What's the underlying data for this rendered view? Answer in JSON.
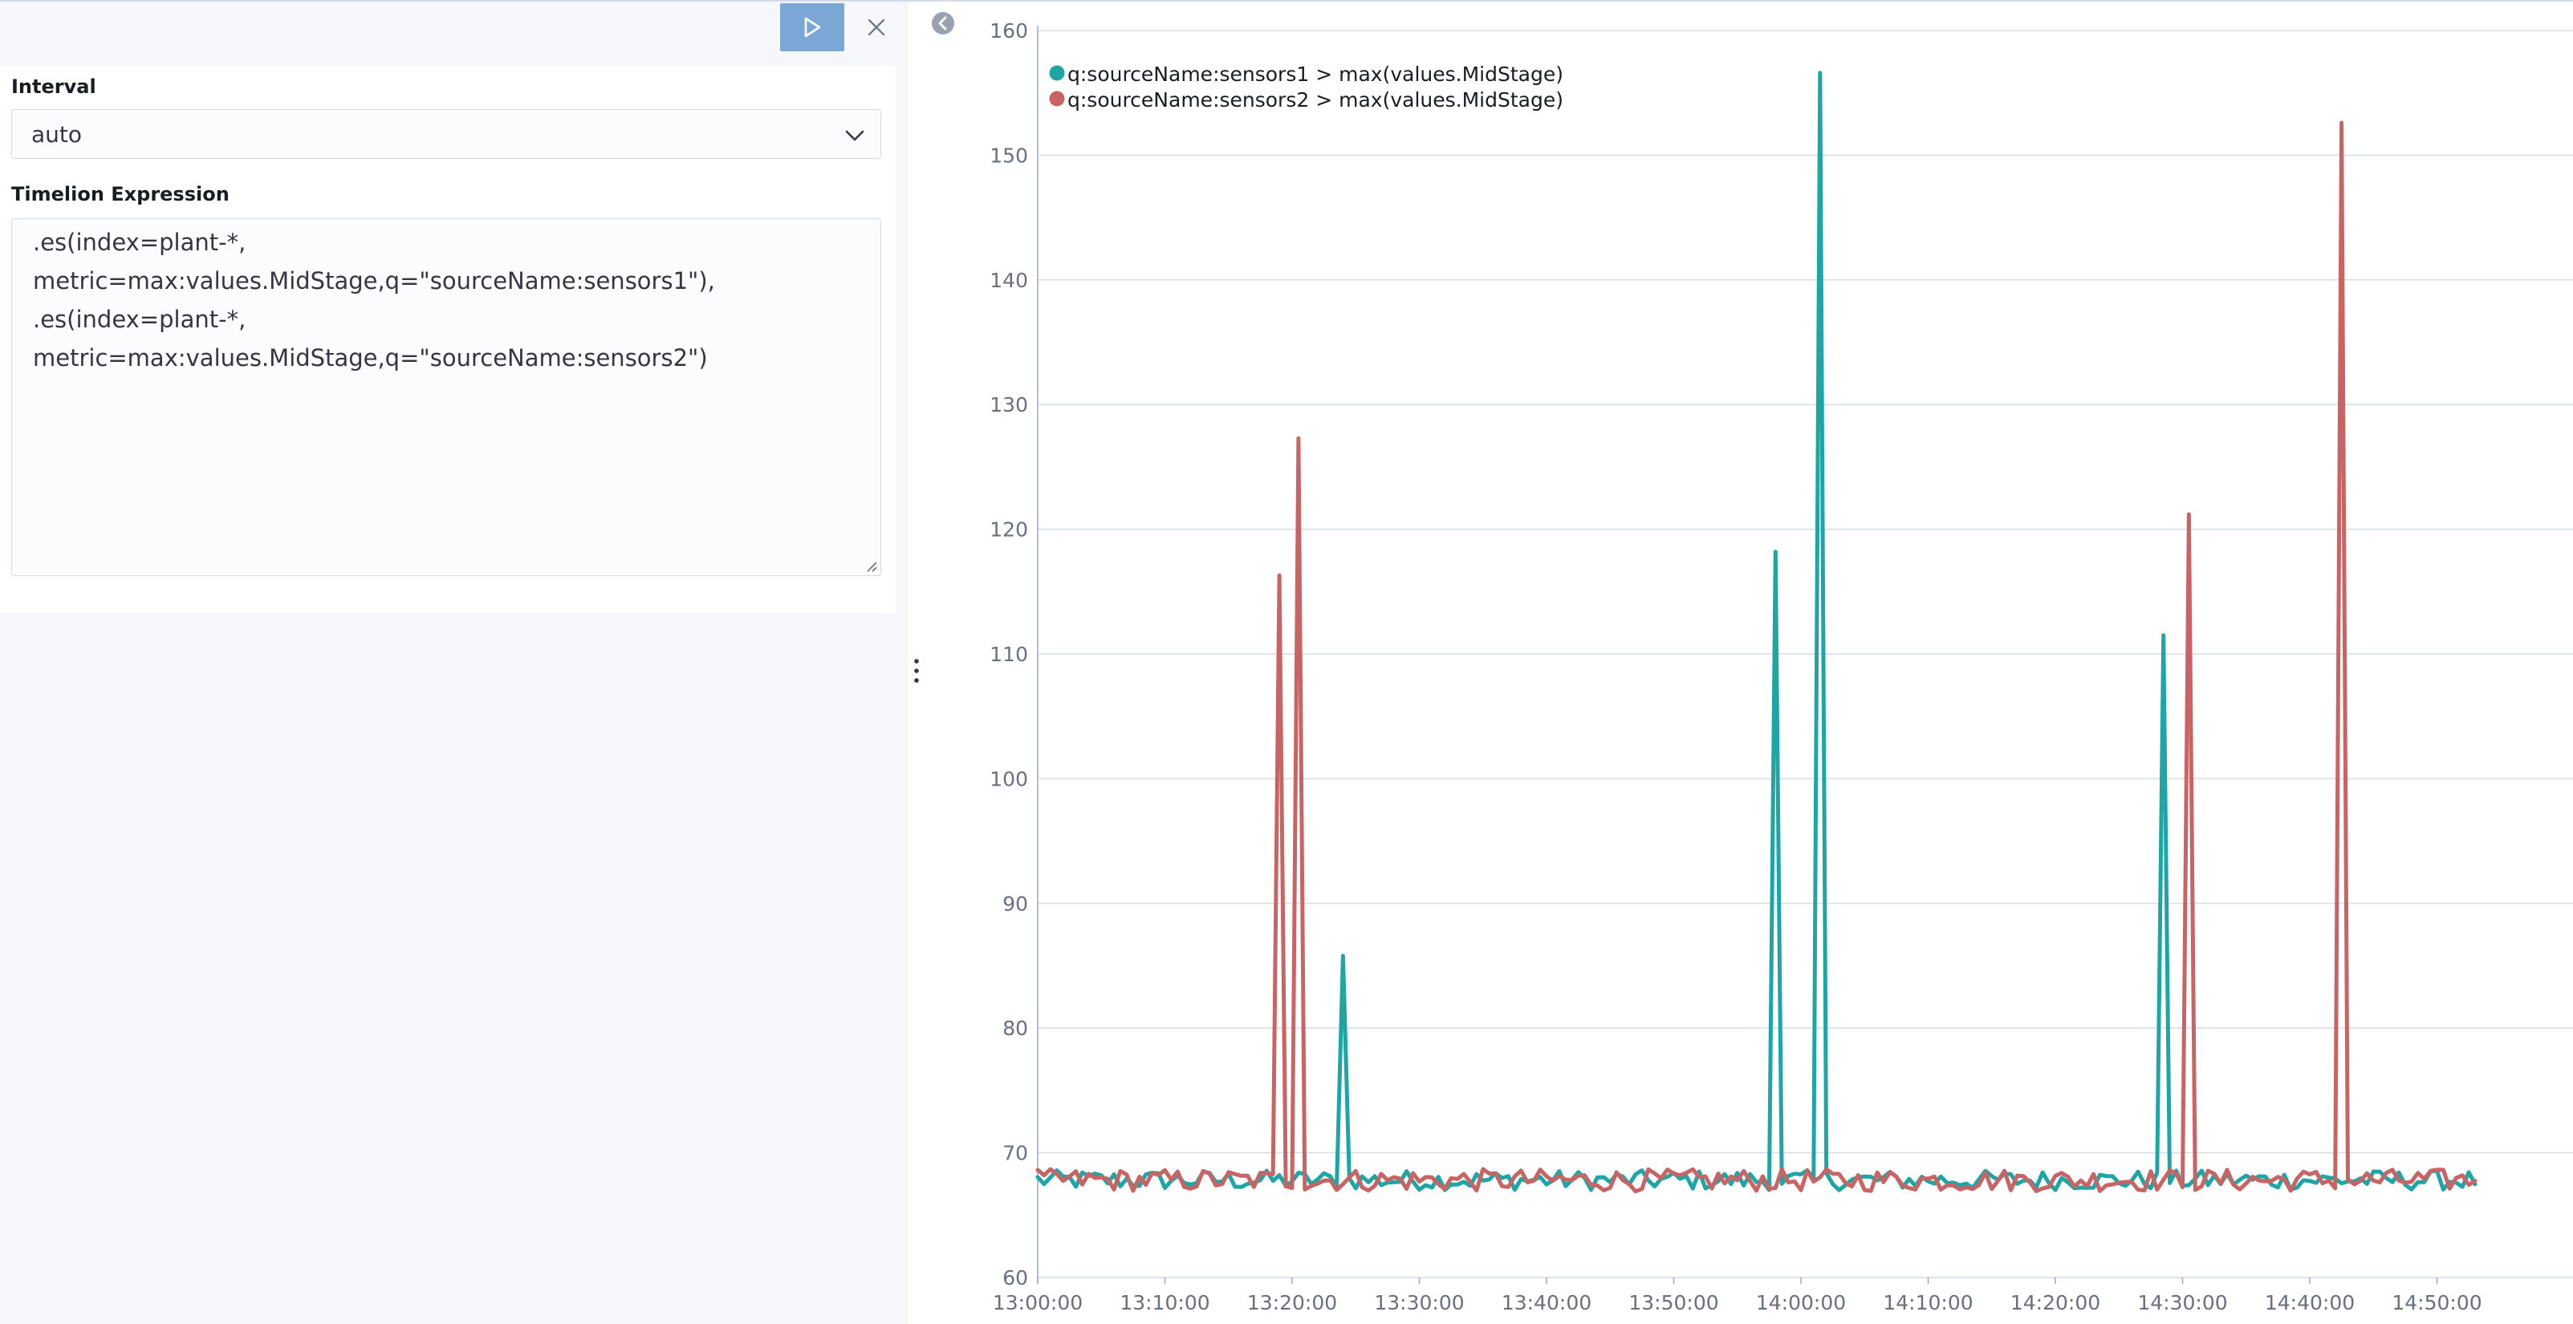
{
  "editor": {
    "run_icon": "play-icon",
    "close_icon": "close-icon",
    "interval": {
      "label": "Interval",
      "value": "auto",
      "icon": "chevron-down-icon"
    },
    "expression": {
      "label": "Timelion Expression",
      "lines": [
        ".es(index=plant-*,",
        "metric=max:values.MidStage,q=\"sourceName:sensors1\"),",
        ".es(index=plant-*,",
        "metric=max:values.MidStage,q=\"sourceName:sensors2\")"
      ]
    }
  },
  "sidebar": {
    "collapse_icon": "arrow-left-circle-icon",
    "resize_icon": "drag-handle-icon"
  },
  "chart_data": {
    "type": "line",
    "title": "",
    "xlabel": "",
    "ylabel": "",
    "ylim": [
      60,
      160
    ],
    "yticks": [
      "160",
      "150",
      "140",
      "130",
      "120",
      "110",
      "100",
      "90",
      "80",
      "70",
      "60"
    ],
    "xticks": [
      "13:00:00",
      "13:10:00",
      "13:20:00",
      "13:30:00",
      "13:40:00",
      "13:50:00",
      "14:00:00",
      "14:10:00",
      "14:20:00",
      "14:30:00",
      "14:40:00",
      "14:50:00"
    ],
    "x_start": "13:00:00",
    "x_end": "14:53:00",
    "grid": "horizontal",
    "legend_position": "top-left",
    "base_value": 67.8,
    "series": [
      {
        "name": "q:sourceName:sensors1 > max(values.MidStage)",
        "color": "#1ea5a5",
        "spikes": [
          {
            "time": "13:24:00",
            "value": 85.8
          },
          {
            "time": "13:58:00",
            "value": 118.2
          },
          {
            "time": "14:01:30",
            "value": 156.6
          },
          {
            "time": "14:28:30",
            "value": 111.5
          }
        ]
      },
      {
        "name": "q:sourceName:sensors2 > max(values.MidStage)",
        "color": "#c86464",
        "spikes": [
          {
            "time": "13:19:00",
            "value": 116.3
          },
          {
            "time": "13:20:30",
            "value": 127.3
          },
          {
            "time": "14:30:30",
            "value": 121.2
          },
          {
            "time": "14:42:30",
            "value": 152.6
          }
        ]
      }
    ]
  }
}
